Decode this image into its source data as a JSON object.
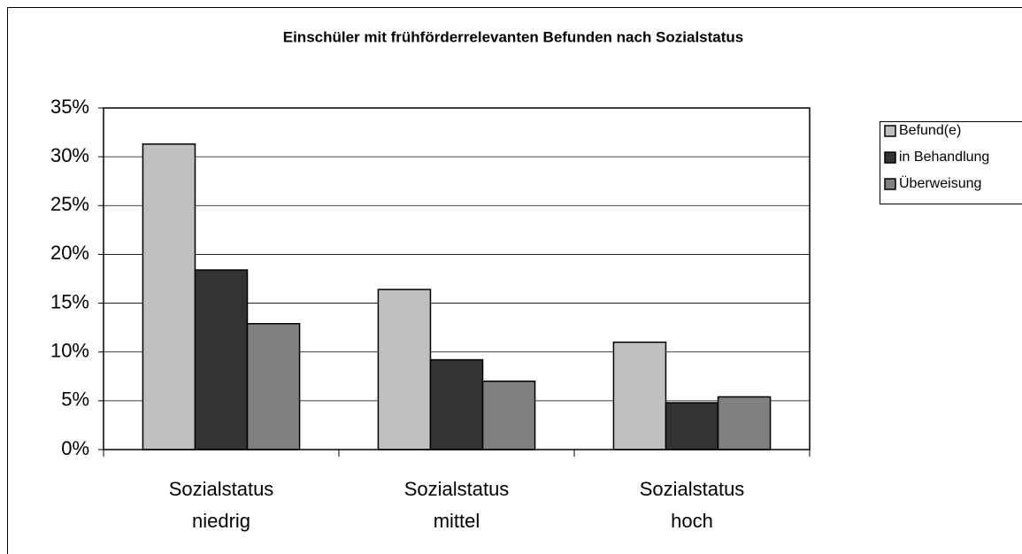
{
  "chart_data": {
    "type": "bar",
    "title": "Einschüler mit frühförderrelevanten Befunden nach Sozialstatus",
    "categories": [
      "Sozialstatus niedrig",
      "Sozialstatus mittel",
      "Sozialstatus hoch"
    ],
    "series": [
      {
        "name": "Befund(e)",
        "color": "#c0c0c0",
        "values": [
          31.3,
          16.4,
          11.0
        ]
      },
      {
        "name": "in Behandlung",
        "color": "#333333",
        "values": [
          18.4,
          9.2,
          4.8
        ]
      },
      {
        "name": "Überweisung",
        "color": "#808080",
        "values": [
          12.9,
          7.0,
          5.4
        ]
      }
    ],
    "ylim": [
      0,
      35
    ],
    "yticks": [
      {
        "value": 0,
        "label": "0%"
      },
      {
        "value": 5,
        "label": "5%"
      },
      {
        "value": 10,
        "label": "10%"
      },
      {
        "value": 15,
        "label": "15%"
      },
      {
        "value": 20,
        "label": "20%"
      },
      {
        "value": 25,
        "label": "25%"
      },
      {
        "value": 30,
        "label": "30%"
      },
      {
        "value": 35,
        "label": "35%"
      }
    ],
    "grid": true,
    "legend": "right"
  }
}
